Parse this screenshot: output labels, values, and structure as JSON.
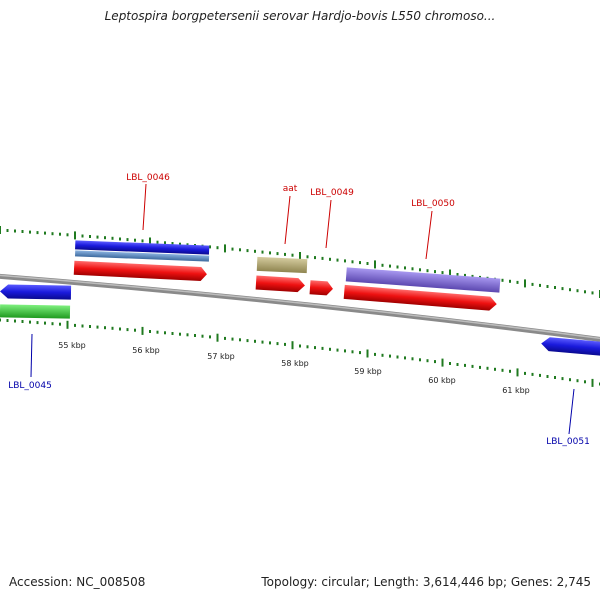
{
  "title": "Leptospira borgpetersenii serovar Hardjo-bovis L550 chromoso...",
  "footer": {
    "accession": "Accession: NC_008508",
    "topology": "Topology: circular; Length: 3,614,446 bp; Genes: 2,745"
  },
  "colors": {
    "backbone": "#8a8a8a",
    "tick_dots": "#1f7a1f",
    "forward_label": "#cc0000",
    "reverse_label": "#0000aa",
    "blue": "#1a1adc",
    "steelblue": "#5a8ac0",
    "red": "#ee1111",
    "khaki": "#b5aa78",
    "purple": "#8470d8",
    "green": "#3bcc3b"
  },
  "ticks": [
    "55 kbp",
    "56 kbp",
    "57 kbp",
    "58 kbp",
    "59 kbp",
    "60 kbp",
    "61 kbp"
  ],
  "gene_labels": {
    "lbl_0046": "LBL_0046",
    "aat": "aat",
    "lbl_0049": "LBL_0049",
    "lbl_0050": "LBL_0050",
    "lbl_0045": "LBL_0045",
    "lbl_0051": "LBL_0051"
  }
}
